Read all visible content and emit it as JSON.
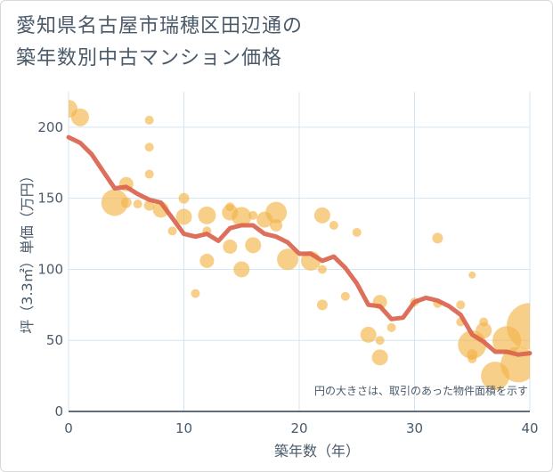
{
  "title_line1": "愛知県名古屋市瑞穂区田辺通の",
  "title_line2": "築年数別中古マンション価格",
  "note": "円の大きさは、取引のあった物件面積を示す",
  "chart_data": {
    "type": "scatter",
    "xlabel": "築年数（年）",
    "ylabel": "坪（3.3㎡）単価（万円）",
    "xlim": [
      0,
      40
    ],
    "ylim": [
      0,
      225
    ],
    "x_ticks": [
      0,
      10,
      20,
      30,
      40
    ],
    "y_ticks": [
      0,
      50,
      100,
      150,
      200
    ],
    "grid": true,
    "colors": {
      "bubble": "#f3b54a",
      "line": "#d9614a",
      "grid": "#d6e4ef",
      "text": "#4a5a6a"
    },
    "series": [
      {
        "type": "bubble",
        "points": [
          {
            "x": 0,
            "y": 213,
            "s": 10
          },
          {
            "x": 1,
            "y": 207,
            "s": 10
          },
          {
            "x": 4,
            "y": 147,
            "s": 15
          },
          {
            "x": 5,
            "y": 160,
            "s": 8
          },
          {
            "x": 5,
            "y": 147,
            "s": 6
          },
          {
            "x": 6,
            "y": 146,
            "s": 5
          },
          {
            "x": 7,
            "y": 205,
            "s": 5
          },
          {
            "x": 7,
            "y": 186,
            "s": 5
          },
          {
            "x": 7,
            "y": 167,
            "s": 5
          },
          {
            "x": 7,
            "y": 145,
            "s": 6
          },
          {
            "x": 8,
            "y": 142,
            "s": 9
          },
          {
            "x": 9,
            "y": 127,
            "s": 5
          },
          {
            "x": 10,
            "y": 150,
            "s": 6
          },
          {
            "x": 10,
            "y": 137,
            "s": 9
          },
          {
            "x": 11,
            "y": 83,
            "s": 5
          },
          {
            "x": 12,
            "y": 138,
            "s": 10
          },
          {
            "x": 12,
            "y": 106,
            "s": 8
          },
          {
            "x": 12,
            "y": 127,
            "s": 5
          },
          {
            "x": 14,
            "y": 144,
            "s": 5
          },
          {
            "x": 14,
            "y": 140,
            "s": 9
          },
          {
            "x": 14,
            "y": 116,
            "s": 8
          },
          {
            "x": 15,
            "y": 137,
            "s": 11
          },
          {
            "x": 15,
            "y": 100,
            "s": 9
          },
          {
            "x": 16,
            "y": 138,
            "s": 5
          },
          {
            "x": 16,
            "y": 117,
            "s": 9
          },
          {
            "x": 17,
            "y": 135,
            "s": 9
          },
          {
            "x": 18,
            "y": 140,
            "s": 12
          },
          {
            "x": 18,
            "y": 131,
            "s": 7
          },
          {
            "x": 19,
            "y": 107,
            "s": 12
          },
          {
            "x": 21,
            "y": 106,
            "s": 11
          },
          {
            "x": 22,
            "y": 138,
            "s": 9
          },
          {
            "x": 22,
            "y": 75,
            "s": 6
          },
          {
            "x": 22,
            "y": 100,
            "s": 5
          },
          {
            "x": 23,
            "y": 131,
            "s": 5
          },
          {
            "x": 24,
            "y": 81,
            "s": 5
          },
          {
            "x": 25,
            "y": 126,
            "s": 5
          },
          {
            "x": 27,
            "y": 77,
            "s": 8
          },
          {
            "x": 26,
            "y": 54,
            "s": 9
          },
          {
            "x": 27,
            "y": 50,
            "s": 5
          },
          {
            "x": 27,
            "y": 38,
            "s": 9
          },
          {
            "x": 28,
            "y": 59,
            "s": 5
          },
          {
            "x": 30,
            "y": 77,
            "s": 5
          },
          {
            "x": 32,
            "y": 122,
            "s": 6
          },
          {
            "x": 32,
            "y": 76,
            "s": 5
          },
          {
            "x": 34,
            "y": 75,
            "s": 5
          },
          {
            "x": 34,
            "y": 63,
            "s": 5
          },
          {
            "x": 35,
            "y": 96,
            "s": 4
          },
          {
            "x": 35,
            "y": 40,
            "s": 6
          },
          {
            "x": 35,
            "y": 47,
            "s": 16
          },
          {
            "x": 35,
            "y": 37,
            "s": 5
          },
          {
            "x": 36,
            "y": 57,
            "s": 9
          },
          {
            "x": 36,
            "y": 63,
            "s": 5
          },
          {
            "x": 37,
            "y": 25,
            "s": 16
          },
          {
            "x": 38,
            "y": 50,
            "s": 16
          },
          {
            "x": 39,
            "y": 33,
            "s": 20
          },
          {
            "x": 40,
            "y": 60,
            "s": 26
          }
        ]
      },
      {
        "type": "line",
        "points": [
          {
            "x": 0,
            "y": 193
          },
          {
            "x": 1,
            "y": 189
          },
          {
            "x": 2,
            "y": 181
          },
          {
            "x": 3,
            "y": 169
          },
          {
            "x": 4,
            "y": 157
          },
          {
            "x": 5,
            "y": 158
          },
          {
            "x": 6,
            "y": 153
          },
          {
            "x": 7,
            "y": 149
          },
          {
            "x": 8,
            "y": 147
          },
          {
            "x": 9,
            "y": 136
          },
          {
            "x": 10,
            "y": 125
          },
          {
            "x": 11,
            "y": 123
          },
          {
            "x": 12,
            "y": 125
          },
          {
            "x": 13,
            "y": 120
          },
          {
            "x": 14,
            "y": 129
          },
          {
            "x": 15,
            "y": 131
          },
          {
            "x": 16,
            "y": 131
          },
          {
            "x": 17,
            "y": 125
          },
          {
            "x": 18,
            "y": 123
          },
          {
            "x": 19,
            "y": 119
          },
          {
            "x": 20,
            "y": 111
          },
          {
            "x": 21,
            "y": 111
          },
          {
            "x": 22,
            "y": 106
          },
          {
            "x": 23,
            "y": 109
          },
          {
            "x": 24,
            "y": 101
          },
          {
            "x": 25,
            "y": 90
          },
          {
            "x": 26,
            "y": 75
          },
          {
            "x": 27,
            "y": 74
          },
          {
            "x": 28,
            "y": 65
          },
          {
            "x": 29,
            "y": 66
          },
          {
            "x": 30,
            "y": 77
          },
          {
            "x": 31,
            "y": 80
          },
          {
            "x": 32,
            "y": 78
          },
          {
            "x": 33,
            "y": 74
          },
          {
            "x": 34,
            "y": 68
          },
          {
            "x": 35,
            "y": 54
          },
          {
            "x": 36,
            "y": 49
          },
          {
            "x": 37,
            "y": 42
          },
          {
            "x": 38,
            "y": 42
          },
          {
            "x": 39,
            "y": 40
          },
          {
            "x": 40,
            "y": 41
          }
        ]
      }
    ]
  }
}
